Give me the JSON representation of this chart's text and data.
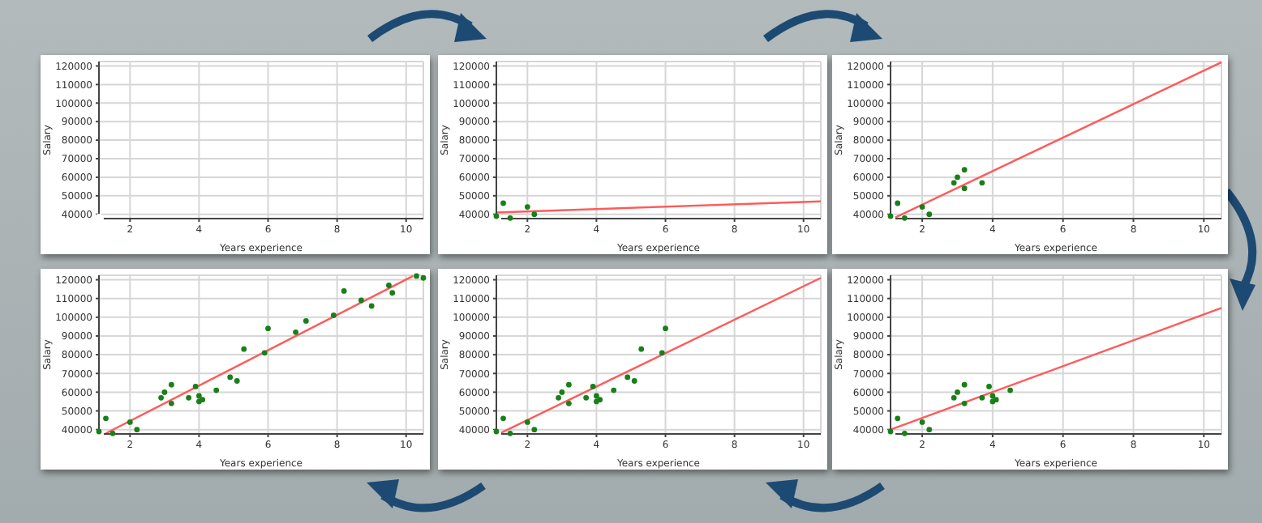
{
  "chart_data": [
    {
      "type": "scatter",
      "xlabel": "Years experience",
      "ylabel": "Salary",
      "xlim": [
        1.1,
        10.5
      ],
      "ylim": [
        37700,
        122400
      ],
      "xticks": [
        2,
        4,
        6,
        8,
        10
      ],
      "yticks": [
        40000,
        50000,
        60000,
        70000,
        80000,
        90000,
        100000,
        110000,
        120000
      ],
      "grid": true
    },
    {
      "type": "scatter",
      "xlabel": "Years experience",
      "ylabel": "Salary",
      "xlim": [
        1.1,
        10.5
      ],
      "ylim": [
        37700,
        122400
      ],
      "xticks": [
        2,
        4,
        6,
        8,
        10
      ],
      "yticks": [
        40000,
        50000,
        60000,
        70000,
        80000,
        90000,
        100000,
        110000,
        120000
      ],
      "grid": true,
      "series": [
        {
          "color": "#1a7f1a",
          "marker": "circle",
          "x": [
            1.1,
            1.3,
            1.5,
            2.0,
            2.2
          ],
          "values": [
            39000,
            46000,
            38000,
            44000,
            40000
          ]
        },
        {
          "type": "line",
          "color": "#ff5a5a",
          "marker": "none",
          "x": [
            1.1,
            10.5
          ],
          "values": [
            41000,
            47000
          ]
        }
      ]
    },
    {
      "type": "scatter",
      "xlabel": "Years experience",
      "ylabel": "Salary",
      "xlim": [
        1.1,
        10.5
      ],
      "ylim": [
        37700,
        122400
      ],
      "xticks": [
        2,
        4,
        6,
        8,
        10
      ],
      "yticks": [
        40000,
        50000,
        60000,
        70000,
        80000,
        90000,
        100000,
        110000,
        120000
      ],
      "grid": true,
      "series": [
        {
          "color": "#1a7f1a",
          "marker": "circle",
          "x": [
            1.1,
            1.3,
            1.5,
            2.0,
            2.2,
            2.9,
            3.0,
            3.2,
            3.2,
            3.7
          ],
          "values": [
            39000,
            46000,
            38000,
            44000,
            40000,
            57000,
            60000,
            54000,
            64000,
            57000
          ]
        },
        {
          "type": "line",
          "color": "#ff5a5a",
          "marker": "none",
          "x": [
            1.2,
            10.5
          ],
          "values": [
            38000,
            122000
          ]
        }
      ]
    },
    {
      "type": "scatter",
      "xlabel": "Years experience",
      "ylabel": "Salary",
      "xlim": [
        1.1,
        10.5
      ],
      "ylim": [
        37700,
        122400
      ],
      "xticks": [
        2,
        4,
        6,
        8,
        10
      ],
      "yticks": [
        40000,
        50000,
        60000,
        70000,
        80000,
        90000,
        100000,
        110000,
        120000
      ],
      "grid": true,
      "series": [
        {
          "color": "#1a7f1a",
          "marker": "circle",
          "x": [
            1.1,
            1.3,
            1.5,
            2.0,
            2.2,
            2.9,
            3.0,
            3.2,
            3.2,
            3.7,
            3.9,
            4.0,
            4.0,
            4.1,
            4.5,
            4.9,
            5.1,
            5.3,
            5.9,
            6.0,
            6.8,
            7.1,
            7.9,
            8.2,
            8.7,
            9.0,
            9.5,
            9.6,
            10.3,
            10.5
          ],
          "values": [
            39000,
            46000,
            38000,
            44000,
            40000,
            57000,
            60000,
            54000,
            64000,
            57000,
            63000,
            55000,
            58000,
            56000,
            61000,
            68000,
            66000,
            83000,
            81000,
            94000,
            92000,
            98000,
            101000,
            114000,
            109000,
            106000,
            117000,
            113000,
            122000,
            121000
          ]
        },
        {
          "type": "line",
          "color": "#ff5a5a",
          "marker": "none",
          "x": [
            1.3,
            10.2
          ],
          "values": [
            38000,
            122000
          ]
        }
      ]
    },
    {
      "type": "scatter",
      "xlabel": "Years experience",
      "ylabel": "Salary",
      "xlim": [
        1.1,
        10.5
      ],
      "ylim": [
        37700,
        122400
      ],
      "xticks": [
        2,
        4,
        6,
        8,
        10
      ],
      "yticks": [
        40000,
        50000,
        60000,
        70000,
        80000,
        90000,
        100000,
        110000,
        120000
      ],
      "grid": true,
      "series": [
        {
          "color": "#1a7f1a",
          "marker": "circle",
          "x": [
            1.1,
            1.3,
            1.5,
            2.0,
            2.2,
            2.9,
            3.0,
            3.2,
            3.2,
            3.7,
            3.9,
            4.0,
            4.0,
            4.1,
            4.5,
            4.9,
            5.1,
            5.3,
            5.9,
            6.0
          ],
          "values": [
            39000,
            46000,
            38000,
            44000,
            40000,
            57000,
            60000,
            54000,
            64000,
            57000,
            63000,
            55000,
            58000,
            56000,
            61000,
            68000,
            66000,
            83000,
            81000,
            94000
          ]
        },
        {
          "type": "line",
          "color": "#ff5a5a",
          "marker": "none",
          "x": [
            1.2,
            10.5
          ],
          "values": [
            38000,
            121000
          ]
        }
      ]
    },
    {
      "type": "scatter",
      "xlabel": "Years experience",
      "ylabel": "Salary",
      "xlim": [
        1.1,
        10.5
      ],
      "ylim": [
        37700,
        122400
      ],
      "xticks": [
        2,
        4,
        6,
        8,
        10
      ],
      "yticks": [
        40000,
        50000,
        60000,
        70000,
        80000,
        90000,
        100000,
        110000,
        120000
      ],
      "grid": true,
      "series": [
        {
          "color": "#1a7f1a",
          "marker": "circle",
          "x": [
            1.1,
            1.3,
            1.5,
            2.0,
            2.2,
            2.9,
            3.0,
            3.2,
            3.2,
            3.7,
            3.9,
            4.0,
            4.0,
            4.1,
            4.5
          ],
          "values": [
            39000,
            46000,
            38000,
            44000,
            40000,
            57000,
            60000,
            54000,
            64000,
            57000,
            63000,
            55000,
            58000,
            56000,
            61000
          ]
        },
        {
          "type": "line",
          "color": "#ff5a5a",
          "marker": "none",
          "x": [
            1.1,
            10.5
          ],
          "values": [
            40000,
            105000
          ]
        }
      ]
    }
  ]
}
